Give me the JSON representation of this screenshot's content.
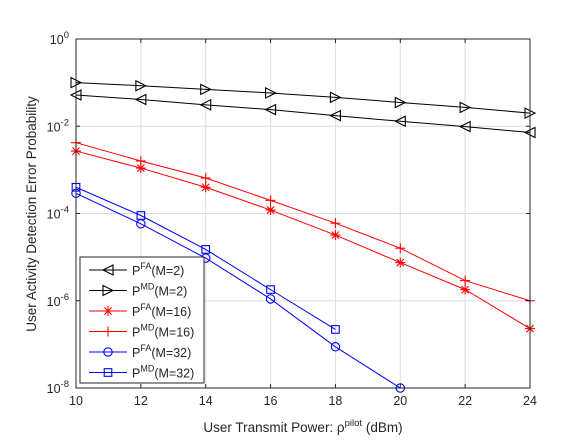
{
  "chart_data": {
    "type": "line",
    "xlabel": "User Transmit Power: ρ",
    "xlabel_sup": "pilot",
    "xlabel_unit": "(dBm)",
    "ylabel": "User Activity Detection Error Probability",
    "xlim": [
      10,
      24
    ],
    "ylim": [
      1e-08,
      1
    ],
    "yscale": "log",
    "grid": true,
    "legend_location": "bottom-left",
    "x_ticks": [
      "10",
      "12",
      "14",
      "16",
      "18",
      "20",
      "22",
      "24"
    ],
    "y_ticks": [
      {
        "base": "10",
        "exp": "0",
        "value": 1
      },
      {
        "base": "10",
        "exp": "-2",
        "value": 0.01
      },
      {
        "base": "10",
        "exp": "-4",
        "value": 0.0001
      },
      {
        "base": "10",
        "exp": "-6",
        "value": 1e-06
      },
      {
        "base": "10",
        "exp": "-8",
        "value": 1e-08
      }
    ],
    "series": [
      {
        "name": "P^FA(M=2)",
        "label_base": "P",
        "label_sup": "FA",
        "label_suffix": "(M=2)",
        "color": "#000000",
        "marker": "triangle-left",
        "x": [
          10,
          12,
          14,
          16,
          18,
          20,
          22,
          24
        ],
        "y": [
          0.052,
          0.041,
          0.031,
          0.024,
          0.0175,
          0.013,
          0.0098,
          0.0072
        ]
      },
      {
        "name": "P^MD(M=2)",
        "label_base": "P",
        "label_sup": "MD",
        "label_suffix": "(M=2)",
        "color": "#000000",
        "marker": "triangle-right",
        "x": [
          10,
          12,
          14,
          16,
          18,
          20,
          22,
          24
        ],
        "y": [
          0.1,
          0.085,
          0.07,
          0.058,
          0.046,
          0.035,
          0.027,
          0.02
        ]
      },
      {
        "name": "P^FA(M=16)",
        "label_base": "P",
        "label_sup": "FA",
        "label_suffix": "(M=16)",
        "color": "#ff0000",
        "marker": "star",
        "x": [
          10,
          12,
          14,
          16,
          18,
          20,
          22,
          24
        ],
        "y": [
          0.0027,
          0.0011,
          0.0004,
          0.00012,
          3.2e-05,
          7.5e-06,
          1.8e-06,
          2.3e-07
        ]
      },
      {
        "name": "P^MD(M=16)",
        "label_base": "P",
        "label_sup": "MD",
        "label_suffix": "(M=16)",
        "color": "#ff0000",
        "marker": "plus",
        "x": [
          10,
          12,
          14,
          16,
          18,
          20,
          22,
          24
        ],
        "y": [
          0.0042,
          0.0016,
          0.00065,
          0.0002,
          6e-05,
          1.6e-05,
          2.9e-06,
          1e-06
        ]
      },
      {
        "name": "P^FA(M=32)",
        "label_base": "P",
        "label_sup": "FA",
        "label_suffix": "(M=32)",
        "color": "#0000ff",
        "marker": "circle",
        "x": [
          10,
          12,
          14,
          16,
          18,
          20
        ],
        "y": [
          0.00029,
          5.8e-05,
          9.5e-06,
          1.1e-06,
          8.8e-08,
          1e-08
        ]
      },
      {
        "name": "P^MD(M=32)",
        "label_base": "P",
        "label_sup": "MD",
        "label_suffix": "(M=32)",
        "color": "#0000ff",
        "marker": "square",
        "x": [
          10,
          12,
          14,
          16,
          18
        ],
        "y": [
          0.0004,
          9e-05,
          1.5e-05,
          1.8e-06,
          2.2e-07
        ]
      }
    ]
  }
}
